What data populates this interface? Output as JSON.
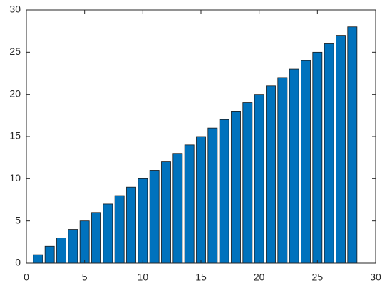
{
  "chart_data": {
    "type": "bar",
    "x": [
      1,
      2,
      3,
      4,
      5,
      6,
      7,
      8,
      9,
      10,
      11,
      12,
      13,
      14,
      15,
      16,
      17,
      18,
      19,
      20,
      21,
      22,
      23,
      24,
      25,
      26,
      27,
      28
    ],
    "values": [
      1,
      2,
      3,
      4,
      5,
      6,
      7,
      8,
      9,
      10,
      11,
      12,
      13,
      14,
      15,
      16,
      17,
      18,
      19,
      20,
      21,
      22,
      23,
      24,
      25,
      26,
      27,
      28
    ],
    "color": "#0072bd",
    "xlim": [
      0,
      30
    ],
    "xticks": [
      0,
      5,
      10,
      15,
      20,
      25,
      30
    ],
    "ylim": [
      0,
      30
    ],
    "yticks": [
      0,
      5,
      10,
      15,
      20,
      25,
      30
    ],
    "grid": false
  }
}
